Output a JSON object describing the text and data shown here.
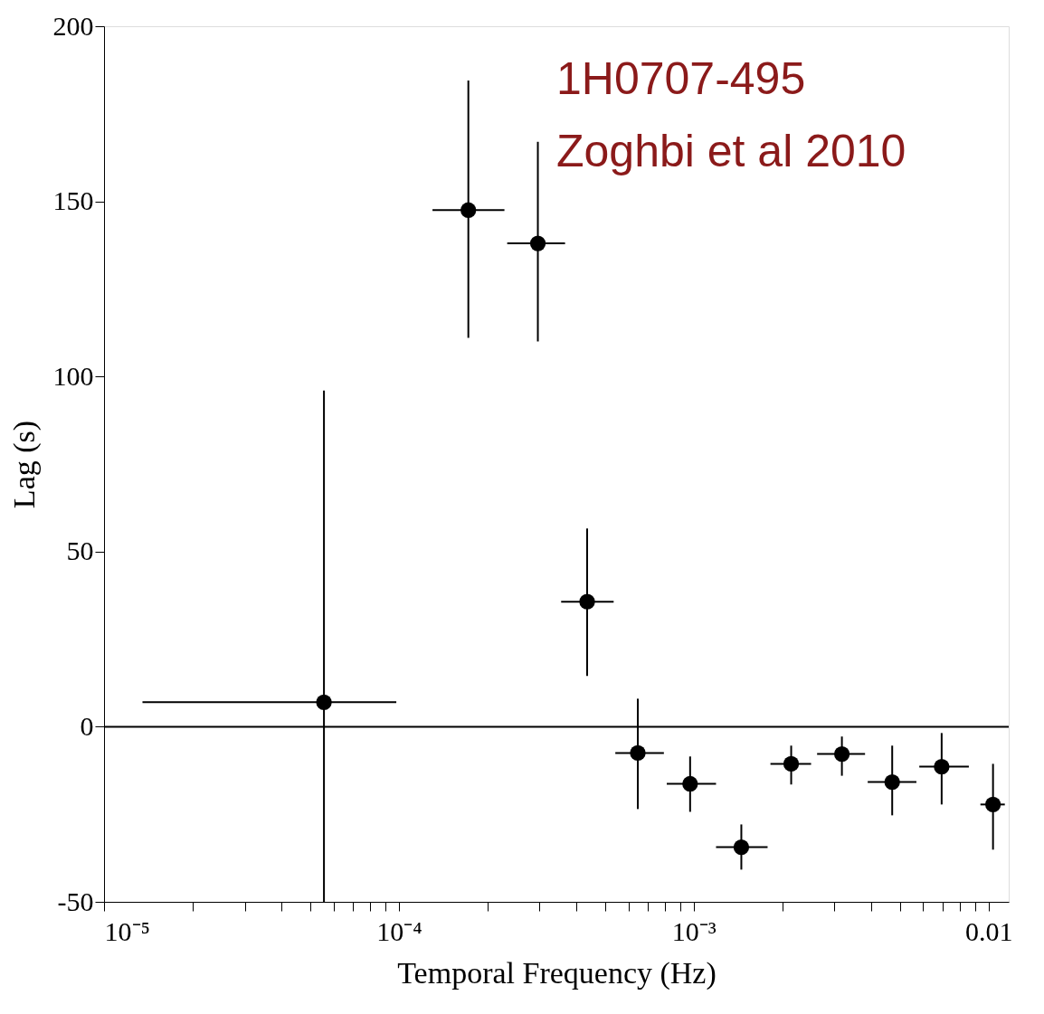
{
  "chart_data": {
    "type": "scatter",
    "xlabel": "Temporal Frequency (Hz)",
    "ylabel": "Lag (s)",
    "annotations": [
      "1H0707-495",
      "Zoghbi et al 2010"
    ],
    "log": "x",
    "grid": false,
    "marker": "circle",
    "xlim": [
      1e-05,
      0.0117
    ],
    "ylim": [
      -50,
      200
    ],
    "xticks": [
      {
        "value": 1e-05,
        "label": "10⁻⁵"
      },
      {
        "value": 2e-05,
        "label": null
      },
      {
        "value": 3e-05,
        "label": null
      },
      {
        "value": 4e-05,
        "label": null
      },
      {
        "value": 5e-05,
        "label": null
      },
      {
        "value": 6e-05,
        "label": null
      },
      {
        "value": 7e-05,
        "label": null
      },
      {
        "value": 8e-05,
        "label": null
      },
      {
        "value": 9e-05,
        "label": null
      },
      {
        "value": 0.0001,
        "label": "10⁻⁴"
      },
      {
        "value": 0.0002,
        "label": null
      },
      {
        "value": 0.0003,
        "label": null
      },
      {
        "value": 0.0004,
        "label": null
      },
      {
        "value": 0.0005,
        "label": null
      },
      {
        "value": 0.0006,
        "label": null
      },
      {
        "value": 0.0007,
        "label": null
      },
      {
        "value": 0.0008,
        "label": null
      },
      {
        "value": 0.0009,
        "label": null
      },
      {
        "value": 0.001,
        "label": "10⁻³"
      },
      {
        "value": 0.002,
        "label": null
      },
      {
        "value": 0.003,
        "label": null
      },
      {
        "value": 0.004,
        "label": null
      },
      {
        "value": 0.005,
        "label": null
      },
      {
        "value": 0.006,
        "label": null
      },
      {
        "value": 0.007,
        "label": null
      },
      {
        "value": 0.008,
        "label": null
      },
      {
        "value": 0.009,
        "label": null
      },
      {
        "value": 0.01,
        "label": "0.01"
      }
    ],
    "yticks": [
      -50,
      0,
      50,
      100,
      150,
      200
    ],
    "ref_lines": [
      {
        "axis": "y",
        "value": 0,
        "label": null,
        "color": "#000000"
      }
    ],
    "series": [
      {
        "color": "#000000",
        "x": [
          5.57e-05,
          0.000172,
          0.000296,
          0.000435,
          0.000646,
          0.000972,
          0.00145,
          0.00214,
          0.00318,
          0.00471,
          0.00693,
          0.01035
        ],
        "values": [
          7,
          147.5,
          138,
          35.7,
          -7.5,
          -16.3,
          -34.4,
          -10.6,
          -7.8,
          -15.8,
          -11.4,
          -22.2
        ],
        "errors": [
          [
            -50,
            96
          ],
          [
            111,
            184.5
          ],
          [
            110,
            167
          ],
          [
            14.5,
            56.6
          ],
          [
            -23.5,
            8
          ],
          [
            -24.3,
            -8.5
          ],
          [
            -40.8,
            -27.9
          ],
          [
            -16.5,
            -5.4
          ],
          [
            -14,
            -2.8
          ],
          [
            -25.3,
            -5.4
          ],
          [
            -22.2,
            -1.8
          ],
          [
            -35.1,
            -10.6
          ]
        ],
        "xerrors": [
          [
            1.35e-05,
            9.8e-05
          ],
          [
            0.00013,
            0.000228
          ],
          [
            0.000233,
            0.000366
          ],
          [
            0.000355,
            0.000535
          ],
          [
            0.000542,
            0.000792
          ],
          [
            0.00081,
            0.00119
          ],
          [
            0.00119,
            0.00178
          ],
          [
            0.00182,
            0.0025
          ],
          [
            0.00262,
            0.00381
          ],
          [
            0.00389,
            0.00569
          ],
          [
            0.00582,
            0.00857
          ],
          [
            0.00938,
            0.01135
          ]
        ]
      }
    ]
  }
}
